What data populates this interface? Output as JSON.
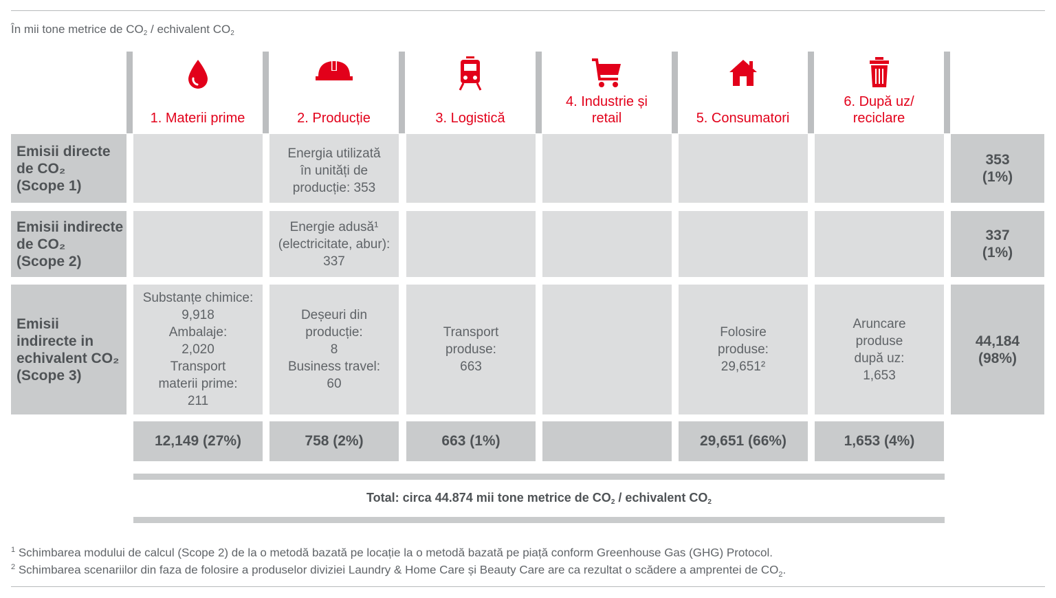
{
  "unit_note": {
    "text": "În mii tone metrice de CO",
    "sub": "2",
    "text2": " / echivalent CO",
    "sub2": "2"
  },
  "stages": [
    {
      "label": "1. Materii prime",
      "icon": "oil-drop-icon"
    },
    {
      "label": "2. Producție",
      "icon": "hard-hat-icon"
    },
    {
      "label": "3. Logistică",
      "icon": "train-icon"
    },
    {
      "label": "4. Industrie și\nretail",
      "icon": "shopping-cart-icon"
    },
    {
      "label": "5. Consumatori",
      "icon": "house-icon"
    },
    {
      "label": "6. După uz/\nreciclare",
      "icon": "trash-can-icon"
    }
  ],
  "rows": [
    {
      "label": "Emisii directe\nde CO₂\n(Scope 1)",
      "total": "353\n(1%)",
      "cells": [
        "",
        "Energia utilizată\nîn unități de\nproducție: 353",
        "",
        "",
        "",
        ""
      ]
    },
    {
      "label": "Emisii indirecte\nde CO₂\n(Scope 2)",
      "total": "337\n(1%)",
      "cells": [
        "",
        "Energie adusă¹\n(electricitate, abur):\n337",
        "",
        "",
        "",
        ""
      ]
    },
    {
      "label": "Emisii\nindirecte in\nechivalent CO₂\n(Scope 3)",
      "total": "44,184\n(98%)",
      "cells": [
        "Substanțe chimice:\n9,918\nAmbalaje:\n2,020\nTransport\nmaterii prime:\n211",
        "Deșeuri din\nproducție:\n8\nBusiness travel:\n60",
        "Transport\nproduse:\n663",
        "",
        "Folosire\nproduse:\n29,651²",
        "Aruncare\nproduse\ndupă uz:\n1,653"
      ]
    }
  ],
  "stage_totals": [
    "12,149 (27%)",
    "758 (2%)",
    "663 (1%)",
    "",
    "29,651 (66%)",
    "1,653 (4%)"
  ],
  "total": {
    "text": "Total: circa 44.874 mii tone metrice de CO",
    "sub": "2",
    "text2": " / echivalent CO",
    "sub2": "2"
  },
  "footnotes": [
    {
      "mark": "1",
      "text": " Schimbarea modului de calcul (Scope 2) de la o metodă bazată pe locație la o metodă bazată pe piață conform Greenhouse Gas (GHG) Protocol."
    },
    {
      "mark": "2",
      "text": " Schimbarea scenariilor din faza de folosire a produselor diviziei Laundry & Home Care și Beauty Care are ca rezultat o scădere a amprentei de CO",
      "sub": "2",
      "tail": "."
    }
  ],
  "colors": {
    "accent": "#e2001a",
    "cell": "#dcddde",
    "label_cell": "#c9cbcc"
  }
}
